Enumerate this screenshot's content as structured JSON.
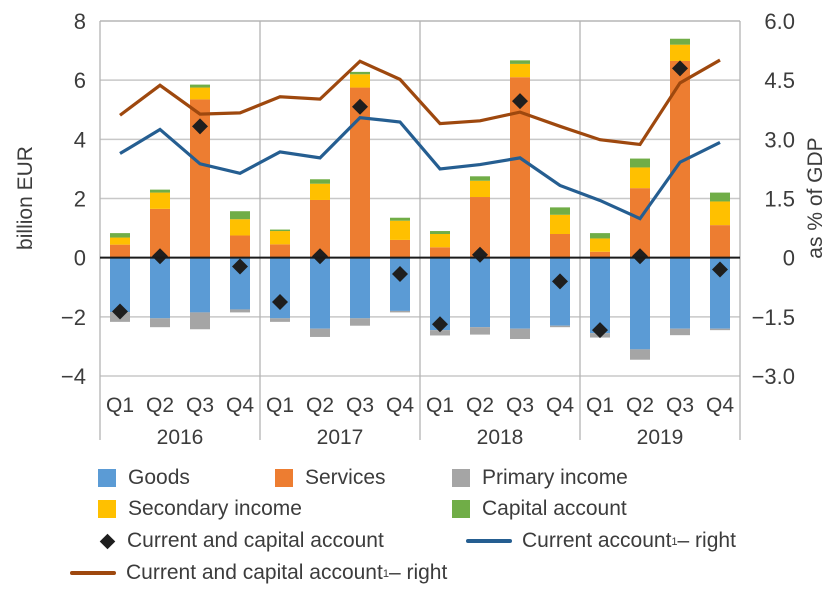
{
  "chart_data": {
    "type": "bar",
    "subtype": "stacked bar with markers and secondary-axis lines",
    "years": [
      "2016",
      "2017",
      "2018",
      "2019"
    ],
    "categories": [
      "Q1",
      "Q2",
      "Q3",
      "Q4",
      "Q1",
      "Q2",
      "Q3",
      "Q4",
      "Q1",
      "Q2",
      "Q3",
      "Q4",
      "Q1",
      "Q2",
      "Q3",
      "Q4"
    ],
    "ylabel": "billion EUR",
    "ylabel_right": "as % of GDP",
    "ylim": [
      -4,
      8
    ],
    "ylim_right": [
      -3.0,
      6.0
    ],
    "yticks": [
      "8",
      "6",
      "4",
      "2",
      "0",
      "−2",
      "−4"
    ],
    "yticks_right": [
      "6.0",
      "4.5",
      "3.0",
      "1.5",
      "0",
      "−1.5",
      "−3.0"
    ],
    "grid": true,
    "legend_position": "bottom",
    "series": [
      {
        "name": "Goods",
        "kind": "bar",
        "axis": "left",
        "color": "#5b9bd5",
        "values": [
          -1.84,
          -2.05,
          -1.85,
          -1.75,
          -2.05,
          -2.4,
          -2.05,
          -1.8,
          -2.45,
          -2.35,
          -2.4,
          -2.3,
          -2.55,
          -3.1,
          -2.4,
          -2.4
        ]
      },
      {
        "name": "Services",
        "kind": "bar",
        "axis": "left",
        "color": "#ed7d31",
        "values": [
          0.44,
          1.65,
          5.35,
          0.75,
          0.45,
          1.95,
          5.75,
          0.6,
          0.35,
          2.05,
          6.1,
          0.8,
          0.2,
          2.35,
          6.65,
          1.1
        ]
      },
      {
        "name": "Primary income",
        "kind": "bar",
        "axis": "left",
        "color": "#a5a5a5",
        "values": [
          -0.33,
          -0.3,
          -0.57,
          -0.1,
          -0.12,
          -0.28,
          -0.25,
          -0.05,
          -0.18,
          -0.25,
          -0.35,
          -0.05,
          -0.15,
          -0.35,
          -0.22,
          -0.05
        ]
      },
      {
        "name": "Secondary income",
        "kind": "bar",
        "axis": "left",
        "color": "#ffc000",
        "values": [
          0.24,
          0.55,
          0.4,
          0.55,
          0.45,
          0.55,
          0.45,
          0.65,
          0.45,
          0.55,
          0.45,
          0.65,
          0.45,
          0.7,
          0.55,
          0.8
        ]
      },
      {
        "name": "Capital account",
        "kind": "bar",
        "axis": "left",
        "color": "#70ad47",
        "values": [
          0.15,
          0.1,
          0.1,
          0.27,
          0.05,
          0.15,
          0.08,
          0.1,
          0.1,
          0.15,
          0.12,
          0.25,
          0.18,
          0.3,
          0.2,
          0.3
        ]
      },
      {
        "name": "Current and capital account",
        "kind": "marker",
        "axis": "left",
        "color": "#1e1e1e",
        "values": [
          -1.82,
          0.05,
          4.44,
          -0.3,
          -1.5,
          0.05,
          5.1,
          -0.55,
          -2.25,
          0.1,
          5.29,
          -0.8,
          -2.45,
          0.05,
          6.4,
          -0.4
        ]
      },
      {
        "name": "Current account¹ – right",
        "kind": "line",
        "axis": "right",
        "color": "#255e91",
        "values": [
          2.64,
          3.25,
          2.38,
          2.14,
          2.68,
          2.53,
          3.55,
          3.44,
          2.25,
          2.36,
          2.53,
          1.83,
          1.45,
          0.99,
          2.42,
          2.92
        ]
      },
      {
        "name": "Current and capital account¹ – right",
        "kind": "line",
        "axis": "right",
        "color": "#9e480e",
        "values": [
          3.61,
          4.37,
          3.64,
          3.67,
          4.08,
          4.02,
          4.98,
          4.52,
          3.4,
          3.47,
          3.69,
          3.33,
          2.99,
          2.87,
          4.43,
          5.01
        ]
      }
    ]
  },
  "legend": {
    "goods": "Goods",
    "services": "Services",
    "primary_income": "Primary income",
    "secondary_income": "Secondary income",
    "capital_account": "Capital account",
    "cca_marker": "Current and capital account",
    "ca_line": "Current account",
    "ca_line_suffix": " – right",
    "cca_line": "Current and capital account",
    "cca_line_suffix": " – right",
    "footnote_mark": "1"
  }
}
